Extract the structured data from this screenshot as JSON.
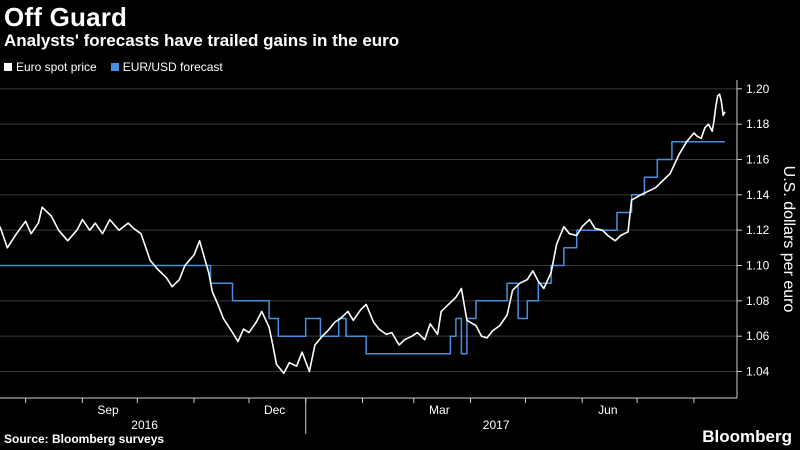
{
  "header": {
    "title": "Off Guard",
    "subtitle": "Analysts' forecasts have trailed gains in the euro"
  },
  "footer": {
    "source": "Source: Bloomberg surveys",
    "brand": "Bloomberg"
  },
  "chart_data": {
    "type": "line",
    "title": "Off Guard",
    "subtitle": "Analysts' forecasts have trailed gains in the euro",
    "ylabel": "U.S. dollars per euro",
    "xlabel": "",
    "ylim": [
      1.025,
      1.205
    ],
    "yticks": [
      1.04,
      1.06,
      1.08,
      1.1,
      1.12,
      1.14,
      1.16,
      1.18,
      1.2
    ],
    "ytick_labels": [
      "1.04",
      "1.06",
      "1.08",
      "1.10",
      "1.12",
      "1.14",
      "1.16",
      "1.18",
      "1.20"
    ],
    "y_axis_side": "right",
    "grid": "horizontal",
    "legend_position": "top-left",
    "x_start": "2016-07-18",
    "x_end": "2017-08-18",
    "x_month_labels": [
      {
        "label": "Sep",
        "date": "2016-09-15"
      },
      {
        "label": "Dec",
        "date": "2016-12-15"
      },
      {
        "label": "Mar",
        "date": "2017-03-15"
      },
      {
        "label": "Jun",
        "date": "2017-06-15"
      }
    ],
    "x_year_labels": [
      {
        "label": "2016",
        "date": "2016-10-05"
      },
      {
        "label": "2017",
        "date": "2017-04-15"
      }
    ],
    "year_divider": "2017-01-01",
    "series": [
      {
        "name": "Euro spot price",
        "color": "#ffffff",
        "step": false,
        "points": [
          [
            "2016-07-18",
            1.122
          ],
          [
            "2016-07-22",
            1.11
          ],
          [
            "2016-07-27",
            1.118
          ],
          [
            "2016-08-01",
            1.125
          ],
          [
            "2016-08-04",
            1.118
          ],
          [
            "2016-08-08",
            1.124
          ],
          [
            "2016-08-10",
            1.133
          ],
          [
            "2016-08-15",
            1.128
          ],
          [
            "2016-08-19",
            1.12
          ],
          [
            "2016-08-24",
            1.114
          ],
          [
            "2016-08-29",
            1.12
          ],
          [
            "2016-09-01",
            1.126
          ],
          [
            "2016-09-05",
            1.12
          ],
          [
            "2016-09-08",
            1.124
          ],
          [
            "2016-09-12",
            1.118
          ],
          [
            "2016-09-16",
            1.126
          ],
          [
            "2016-09-21",
            1.12
          ],
          [
            "2016-09-26",
            1.124
          ],
          [
            "2016-09-29",
            1.121
          ],
          [
            "2016-10-03",
            1.118
          ],
          [
            "2016-10-06",
            1.109
          ],
          [
            "2016-10-08",
            1.103
          ],
          [
            "2016-10-12",
            1.098
          ],
          [
            "2016-10-17",
            1.093
          ],
          [
            "2016-10-20",
            1.088
          ],
          [
            "2016-10-24",
            1.092
          ],
          [
            "2016-10-27",
            1.1
          ],
          [
            "2016-11-01",
            1.106
          ],
          [
            "2016-11-04",
            1.114
          ],
          [
            "2016-11-07",
            1.103
          ],
          [
            "2016-11-09",
            1.096
          ],
          [
            "2016-11-11",
            1.085
          ],
          [
            "2016-11-14",
            1.078
          ],
          [
            "2016-11-17",
            1.07
          ],
          [
            "2016-11-22",
            1.062
          ],
          [
            "2016-11-25",
            1.057
          ],
          [
            "2016-11-28",
            1.064
          ],
          [
            "2016-12-01",
            1.062
          ],
          [
            "2016-12-05",
            1.068
          ],
          [
            "2016-12-08",
            1.074
          ],
          [
            "2016-12-12",
            1.065
          ],
          [
            "2016-12-14",
            1.055
          ],
          [
            "2016-12-16",
            1.044
          ],
          [
            "2016-12-20",
            1.039
          ],
          [
            "2016-12-23",
            1.045
          ],
          [
            "2016-12-27",
            1.043
          ],
          [
            "2016-12-30",
            1.051
          ],
          [
            "2017-01-03",
            1.04
          ],
          [
            "2017-01-06",
            1.055
          ],
          [
            "2017-01-10",
            1.06
          ],
          [
            "2017-01-13",
            1.063
          ],
          [
            "2017-01-17",
            1.068
          ],
          [
            "2017-01-20",
            1.07
          ],
          [
            "2017-01-24",
            1.074
          ],
          [
            "2017-01-27",
            1.069
          ],
          [
            "2017-01-31",
            1.075
          ],
          [
            "2017-02-03",
            1.078
          ],
          [
            "2017-02-07",
            1.068
          ],
          [
            "2017-02-10",
            1.064
          ],
          [
            "2017-02-14",
            1.061
          ],
          [
            "2017-02-17",
            1.062
          ],
          [
            "2017-02-21",
            1.055
          ],
          [
            "2017-02-24",
            1.058
          ],
          [
            "2017-02-28",
            1.06
          ],
          [
            "2017-03-03",
            1.062
          ],
          [
            "2017-03-07",
            1.058
          ],
          [
            "2017-03-10",
            1.067
          ],
          [
            "2017-03-14",
            1.061
          ],
          [
            "2017-03-16",
            1.074
          ],
          [
            "2017-03-20",
            1.078
          ],
          [
            "2017-03-24",
            1.082
          ],
          [
            "2017-03-27",
            1.087
          ],
          [
            "2017-03-30",
            1.069
          ],
          [
            "2017-04-04",
            1.066
          ],
          [
            "2017-04-07",
            1.06
          ],
          [
            "2017-04-10",
            1.059
          ],
          [
            "2017-04-13",
            1.063
          ],
          [
            "2017-04-17",
            1.066
          ],
          [
            "2017-04-21",
            1.072
          ],
          [
            "2017-04-24",
            1.086
          ],
          [
            "2017-04-28",
            1.09
          ],
          [
            "2017-05-02",
            1.092
          ],
          [
            "2017-05-05",
            1.097
          ],
          [
            "2017-05-08",
            1.091
          ],
          [
            "2017-05-11",
            1.087
          ],
          [
            "2017-05-15",
            1.096
          ],
          [
            "2017-05-18",
            1.112
          ],
          [
            "2017-05-22",
            1.122
          ],
          [
            "2017-05-25",
            1.118
          ],
          [
            "2017-05-29",
            1.117
          ],
          [
            "2017-06-01",
            1.122
          ],
          [
            "2017-06-05",
            1.126
          ],
          [
            "2017-06-08",
            1.121
          ],
          [
            "2017-06-12",
            1.12
          ],
          [
            "2017-06-15",
            1.117
          ],
          [
            "2017-06-19",
            1.114
          ],
          [
            "2017-06-22",
            1.117
          ],
          [
            "2017-06-26",
            1.119
          ],
          [
            "2017-06-28",
            1.137
          ],
          [
            "2017-07-03",
            1.14
          ],
          [
            "2017-07-07",
            1.142
          ],
          [
            "2017-07-11",
            1.144
          ],
          [
            "2017-07-14",
            1.147
          ],
          [
            "2017-07-19",
            1.152
          ],
          [
            "2017-07-24",
            1.163
          ],
          [
            "2017-07-28",
            1.17
          ],
          [
            "2017-08-01",
            1.175
          ],
          [
            "2017-08-03",
            1.173
          ],
          [
            "2017-08-05",
            1.172
          ],
          [
            "2017-08-07",
            1.178
          ],
          [
            "2017-08-09",
            1.18
          ],
          [
            "2017-08-11",
            1.176
          ],
          [
            "2017-08-12",
            1.182
          ],
          [
            "2017-08-13",
            1.19
          ],
          [
            "2017-08-14",
            1.196
          ],
          [
            "2017-08-15",
            1.197
          ],
          [
            "2017-08-16",
            1.193
          ],
          [
            "2017-08-17",
            1.185
          ],
          [
            "2017-08-18",
            1.187
          ]
        ]
      },
      {
        "name": "EUR/USD forecast",
        "color": "#4a90e2",
        "step": true,
        "points": [
          [
            "2016-07-18",
            1.1
          ],
          [
            "2016-11-07",
            1.1
          ],
          [
            "2016-11-10",
            1.09
          ],
          [
            "2016-11-22",
            1.08
          ],
          [
            "2016-12-12",
            1.07
          ],
          [
            "2016-12-17",
            1.06
          ],
          [
            "2017-01-01",
            1.07
          ],
          [
            "2017-01-09",
            1.06
          ],
          [
            "2017-01-19",
            1.07
          ],
          [
            "2017-01-23",
            1.06
          ],
          [
            "2017-02-03",
            1.05
          ],
          [
            "2017-03-21",
            1.06
          ],
          [
            "2017-03-24",
            1.07
          ],
          [
            "2017-03-27",
            1.05
          ],
          [
            "2017-03-30",
            1.07
          ],
          [
            "2017-04-04",
            1.08
          ],
          [
            "2017-04-17",
            1.08
          ],
          [
            "2017-04-21",
            1.09
          ],
          [
            "2017-04-27",
            1.07
          ],
          [
            "2017-05-02",
            1.08
          ],
          [
            "2017-05-08",
            1.09
          ],
          [
            "2017-05-15",
            1.1
          ],
          [
            "2017-05-22",
            1.11
          ],
          [
            "2017-05-29",
            1.12
          ],
          [
            "2017-06-06",
            1.12
          ],
          [
            "2017-06-12",
            1.12
          ],
          [
            "2017-06-20",
            1.13
          ],
          [
            "2017-06-28",
            1.14
          ],
          [
            "2017-07-05",
            1.15
          ],
          [
            "2017-07-12",
            1.16
          ],
          [
            "2017-07-20",
            1.17
          ],
          [
            "2017-08-18",
            1.17
          ]
        ]
      }
    ]
  }
}
